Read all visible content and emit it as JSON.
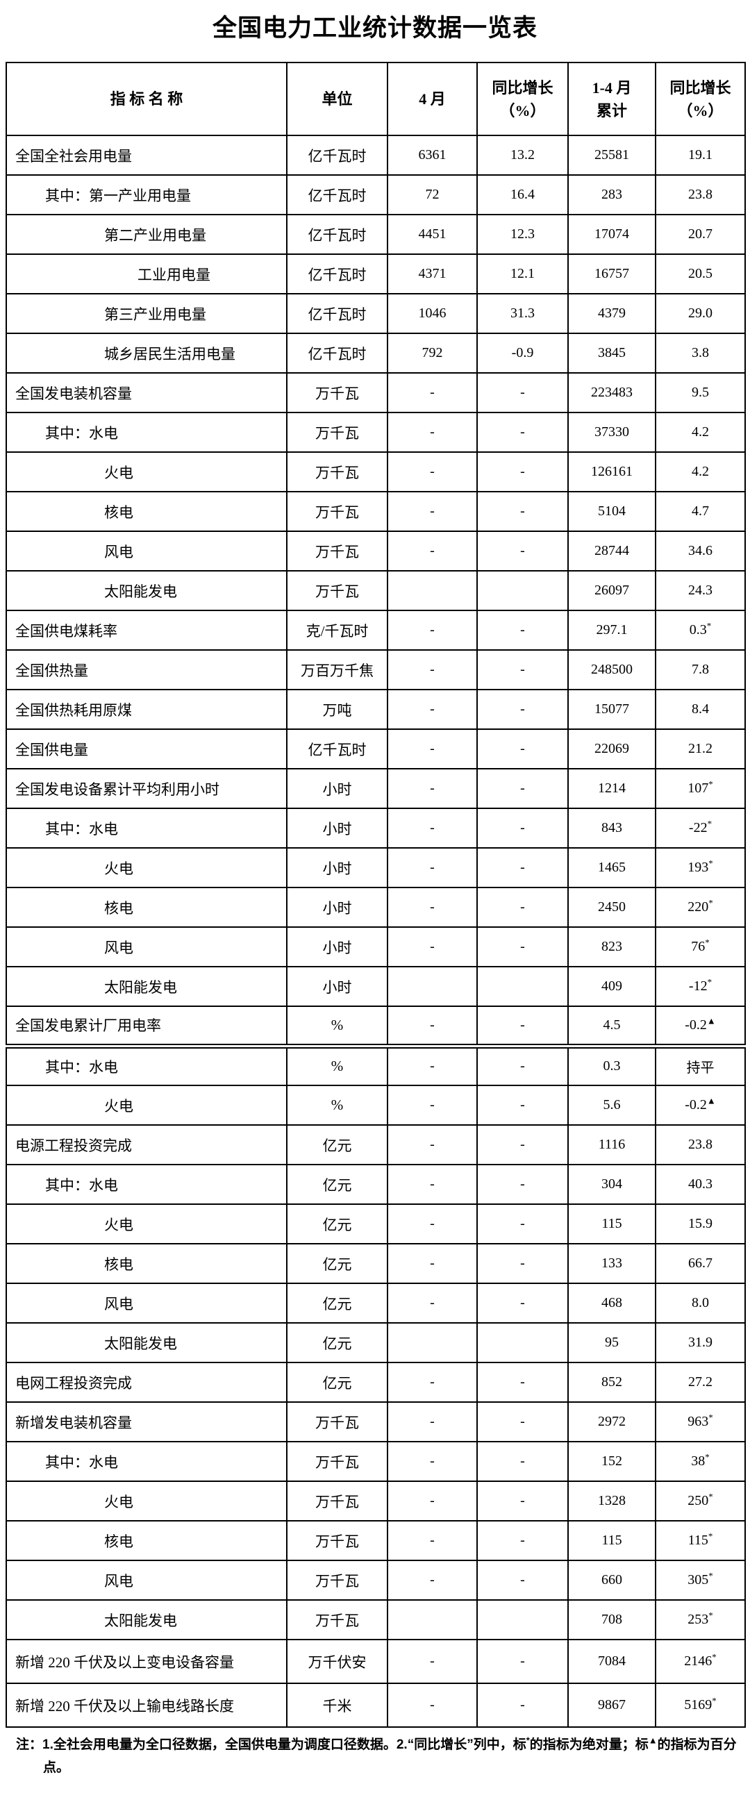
{
  "title": "全国电力工业统计数据一览表",
  "colors": {
    "text": "#000000",
    "background": "#ffffff",
    "border": "#000000"
  },
  "table": {
    "headers": [
      "指  标  名  称",
      "单位",
      "4 月",
      "同比增长\n（%）",
      "1-4 月\n累计",
      "同比增长\n（%）"
    ],
    "rows": [
      {
        "name": "全国全社会用电量",
        "indent": 0,
        "unit": "亿千瓦时",
        "apr": "6361",
        "yoy_apr": "13.2",
        "cum": "25581",
        "yoy_cum": "19.1"
      },
      {
        "name": "其中：第一产业用电量",
        "indent": 1,
        "unit": "亿千瓦时",
        "apr": "72",
        "yoy_apr": "16.4",
        "cum": "283",
        "yoy_cum": "23.8"
      },
      {
        "name": "第二产业用电量",
        "indent": 2,
        "unit": "亿千瓦时",
        "apr": "4451",
        "yoy_apr": "12.3",
        "cum": "17074",
        "yoy_cum": "20.7"
      },
      {
        "name": "工业用电量",
        "indent": 3,
        "unit": "亿千瓦时",
        "apr": "4371",
        "yoy_apr": "12.1",
        "cum": "16757",
        "yoy_cum": "20.5"
      },
      {
        "name": "第三产业用电量",
        "indent": 2,
        "unit": "亿千瓦时",
        "apr": "1046",
        "yoy_apr": "31.3",
        "cum": "4379",
        "yoy_cum": "29.0"
      },
      {
        "name": "城乡居民生活用电量",
        "indent": 2,
        "unit": "亿千瓦时",
        "apr": "792",
        "yoy_apr": "-0.9",
        "cum": "3845",
        "yoy_cum": "3.8"
      },
      {
        "name": "全国发电装机容量",
        "indent": 0,
        "unit": "万千瓦",
        "apr": "-",
        "yoy_apr": "-",
        "cum": "223483",
        "yoy_cum": "9.5"
      },
      {
        "name": "其中：水电",
        "indent": 1,
        "unit": "万千瓦",
        "apr": "-",
        "yoy_apr": "-",
        "cum": "37330",
        "yoy_cum": "4.2"
      },
      {
        "name": "火电",
        "indent": 2,
        "unit": "万千瓦",
        "apr": "-",
        "yoy_apr": "-",
        "cum": "126161",
        "yoy_cum": "4.2"
      },
      {
        "name": "核电",
        "indent": 2,
        "unit": "万千瓦",
        "apr": "-",
        "yoy_apr": "-",
        "cum": "5104",
        "yoy_cum": "4.7"
      },
      {
        "name": "风电",
        "indent": 2,
        "unit": "万千瓦",
        "apr": "-",
        "yoy_apr": "-",
        "cum": "28744",
        "yoy_cum": "34.6"
      },
      {
        "name": "太阳能发电",
        "indent": 2,
        "unit": "万千瓦",
        "apr": "",
        "yoy_apr": "",
        "cum": "26097",
        "yoy_cum": "24.3"
      },
      {
        "name": "全国供电煤耗率",
        "indent": 0,
        "unit": "克/千瓦时",
        "apr": "-",
        "yoy_apr": "-",
        "cum": "297.1",
        "yoy_cum": "0.3*"
      },
      {
        "name": "全国供热量",
        "indent": 0,
        "unit": "万百万千焦",
        "apr": "-",
        "yoy_apr": "-",
        "cum": "248500",
        "yoy_cum": "7.8"
      },
      {
        "name": "全国供热耗用原煤",
        "indent": 0,
        "unit": "万吨",
        "apr": "-",
        "yoy_apr": "-",
        "cum": "15077",
        "yoy_cum": "8.4"
      },
      {
        "name": "全国供电量",
        "indent": 0,
        "unit": "亿千瓦时",
        "apr": "-",
        "yoy_apr": "-",
        "cum": "22069",
        "yoy_cum": "21.2"
      },
      {
        "name": "全国发电设备累计平均利用小时",
        "indent": 0,
        "unit": "小时",
        "apr": "-",
        "yoy_apr": "-",
        "cum": "1214",
        "yoy_cum": "107*"
      },
      {
        "name": "其中：水电",
        "indent": 1,
        "unit": "小时",
        "apr": "-",
        "yoy_apr": "-",
        "cum": "843",
        "yoy_cum": "-22*"
      },
      {
        "name": "火电",
        "indent": 2,
        "unit": "小时",
        "apr": "-",
        "yoy_apr": "-",
        "cum": "1465",
        "yoy_cum": "193*"
      },
      {
        "name": "核电",
        "indent": 2,
        "unit": "小时",
        "apr": "-",
        "yoy_apr": "-",
        "cum": "2450",
        "yoy_cum": "220*"
      },
      {
        "name": "风电",
        "indent": 2,
        "unit": "小时",
        "apr": "-",
        "yoy_apr": "-",
        "cum": "823",
        "yoy_cum": "76*"
      },
      {
        "name": "太阳能发电",
        "indent": 2,
        "unit": "小时",
        "apr": "",
        "yoy_apr": "",
        "cum": "409",
        "yoy_cum": "-12*"
      },
      {
        "name": "全国发电累计厂用电率",
        "indent": 0,
        "unit": "%",
        "apr": "-",
        "yoy_apr": "-",
        "cum": "4.5",
        "yoy_cum": "-0.2▲",
        "divider_below": true
      },
      {
        "name": "其中：水电",
        "indent": 1,
        "unit": "%",
        "apr": "-",
        "yoy_apr": "-",
        "cum": "0.3",
        "yoy_cum": "持平"
      },
      {
        "name": "火电",
        "indent": 2,
        "unit": "%",
        "apr": "-",
        "yoy_apr": "-",
        "cum": "5.6",
        "yoy_cum": "-0.2▲"
      },
      {
        "name": "电源工程投资完成",
        "indent": 0,
        "unit": "亿元",
        "apr": "-",
        "yoy_apr": "-",
        "cum": "1116",
        "yoy_cum": "23.8"
      },
      {
        "name": "其中：水电",
        "indent": 1,
        "unit": "亿元",
        "apr": "-",
        "yoy_apr": "-",
        "cum": "304",
        "yoy_cum": "40.3"
      },
      {
        "name": "火电",
        "indent": 2,
        "unit": "亿元",
        "apr": "-",
        "yoy_apr": "-",
        "cum": "115",
        "yoy_cum": "15.9"
      },
      {
        "name": "核电",
        "indent": 2,
        "unit": "亿元",
        "apr": "-",
        "yoy_apr": "-",
        "cum": "133",
        "yoy_cum": "66.7"
      },
      {
        "name": "风电",
        "indent": 2,
        "unit": "亿元",
        "apr": "-",
        "yoy_apr": "-",
        "cum": "468",
        "yoy_cum": "8.0"
      },
      {
        "name": "太阳能发电",
        "indent": 2,
        "unit": "亿元",
        "apr": "",
        "yoy_apr": "",
        "cum": "95",
        "yoy_cum": "31.9"
      },
      {
        "name": "电网工程投资完成",
        "indent": 0,
        "unit": "亿元",
        "apr": "-",
        "yoy_apr": "-",
        "cum": "852",
        "yoy_cum": "27.2"
      },
      {
        "name": "新增发电装机容量",
        "indent": 0,
        "unit": "万千瓦",
        "apr": "-",
        "yoy_apr": "-",
        "cum": "2972",
        "yoy_cum": "963*"
      },
      {
        "name": "其中：水电",
        "indent": 1,
        "unit": "万千瓦",
        "apr": "-",
        "yoy_apr": "-",
        "cum": "152",
        "yoy_cum": "38*"
      },
      {
        "name": "火电",
        "indent": 2,
        "unit": "万千瓦",
        "apr": "-",
        "yoy_apr": "-",
        "cum": "1328",
        "yoy_cum": "250*"
      },
      {
        "name": "核电",
        "indent": 2,
        "unit": "万千瓦",
        "apr": "-",
        "yoy_apr": "-",
        "cum": "115",
        "yoy_cum": "115*"
      },
      {
        "name": "风电",
        "indent": 2,
        "unit": "万千瓦",
        "apr": "-",
        "yoy_apr": "-",
        "cum": "660",
        "yoy_cum": "305*"
      },
      {
        "name": "太阳能发电",
        "indent": 2,
        "unit": "万千瓦",
        "apr": "",
        "yoy_apr": "",
        "cum": "708",
        "yoy_cum": "253*"
      },
      {
        "name": "新增 220 千伏及以上变电设备容量",
        "indent": 0,
        "unit": "万千伏安",
        "apr": "-",
        "yoy_apr": "-",
        "cum": "7084",
        "yoy_cum": "2146*",
        "tall": true
      },
      {
        "name": "新增 220 千伏及以上输电线路长度",
        "indent": 0,
        "unit": "千米",
        "apr": "-",
        "yoy_apr": "-",
        "cum": "9867",
        "yoy_cum": "5169*",
        "tall": true
      }
    ]
  },
  "note": "注：1.全社会用电量为全口径数据，全国供电量为调度口径数据。2.“同比增长”列中，标*的指标为绝对量；标▲的指标为百分点。"
}
